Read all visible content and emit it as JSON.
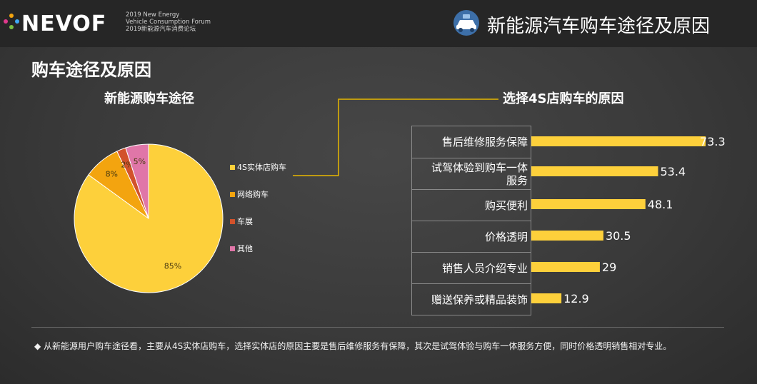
{
  "header": {
    "logo_text": "NEVOF",
    "logo_sub": [
      "2019 New Energy",
      "Vehicle Consumption Forum",
      "2019新能源汽车消费论坛"
    ],
    "title": "新能源汽车购车途径及原因"
  },
  "section_title": "购车途径及原因",
  "footnote": "◆ 从新能源用户购车途径看，主要从4S实体店购车，选择实体店的原因主要是售后维修服务有保障，其次是试驾体验与购车一体服务方便，同时价格透明销售相对专业。",
  "colors": {
    "yellow": "#FDD03B",
    "orange": "#F3A40F",
    "red": "#D2522B",
    "pink": "#E076A8",
    "connector": "#E8B800"
  },
  "chart_data": [
    {
      "type": "pie",
      "title": "新能源购车途径",
      "categories": [
        "4S实体店购车",
        "网络购车",
        "车展",
        "其他"
      ],
      "values": [
        85,
        8,
        2,
        5
      ],
      "labels": [
        "85%",
        "8%",
        "2%",
        "5%"
      ],
      "legend_placement": "right"
    },
    {
      "type": "bar",
      "orientation": "horizontal",
      "title": "选择4S店购车的原因",
      "categories": [
        "售后维修服务保障",
        "试驾体验到购车一体服务",
        "购买便利",
        "价格透明",
        "销售人员介绍专业",
        "赠送保养或精品装饰"
      ],
      "values": [
        73.3,
        53.4,
        48.1,
        30.5,
        29,
        12.9
      ],
      "value_labels": [
        "73.3",
        "53.4",
        "48.1",
        "30.5",
        "29",
        "12.9"
      ]
    }
  ]
}
